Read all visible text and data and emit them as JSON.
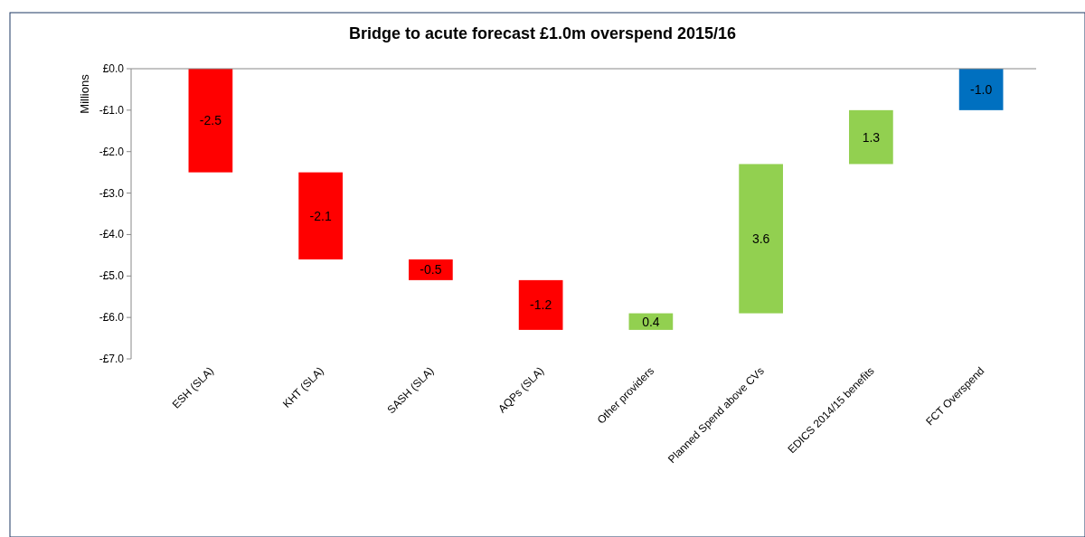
{
  "chart_data": {
    "type": "bar",
    "title": "Bridge to acute forecast £1.0m overspend 2015/16",
    "ylabel": "Millions",
    "categories": [
      "ESH (SLA)",
      "KHT (SLA)",
      "SASH (SLA)",
      "AQPs (SLA)",
      "Other providers",
      "Planned Spend above CVs",
      "EDICS 2014/15 benefits",
      "FCT Overspend"
    ],
    "base": [
      0,
      -2.5,
      -4.6,
      -5.1,
      -6.3,
      -5.9,
      -2.3,
      0
    ],
    "values": [
      -2.5,
      -2.1,
      -0.5,
      -1.2,
      0.4,
      3.6,
      1.3,
      -1.0
    ],
    "colors": [
      "#ff0000",
      "#ff0000",
      "#ff0000",
      "#ff0000",
      "#92d050",
      "#92d050",
      "#92d050",
      "#0070c0"
    ],
    "value_labels": [
      "-2.5",
      "-2.1",
      "-0.5",
      "-1.2",
      "0.4",
      "3.6",
      "1.3",
      "-1.0"
    ],
    "ylim": [
      -7,
      0
    ],
    "yticks": [
      {
        "value": 0,
        "label": "£0.0"
      },
      {
        "value": -1,
        "label": "-£1.0"
      },
      {
        "value": -2,
        "label": "-£2.0"
      },
      {
        "value": -3,
        "label": "-£3.0"
      },
      {
        "value": -4,
        "label": "-£4.0"
      },
      {
        "value": -5,
        "label": "-£5.0"
      },
      {
        "value": -6,
        "label": "-£6.0"
      },
      {
        "value": -7,
        "label": "-£7.0"
      }
    ],
    "grid": false
  }
}
